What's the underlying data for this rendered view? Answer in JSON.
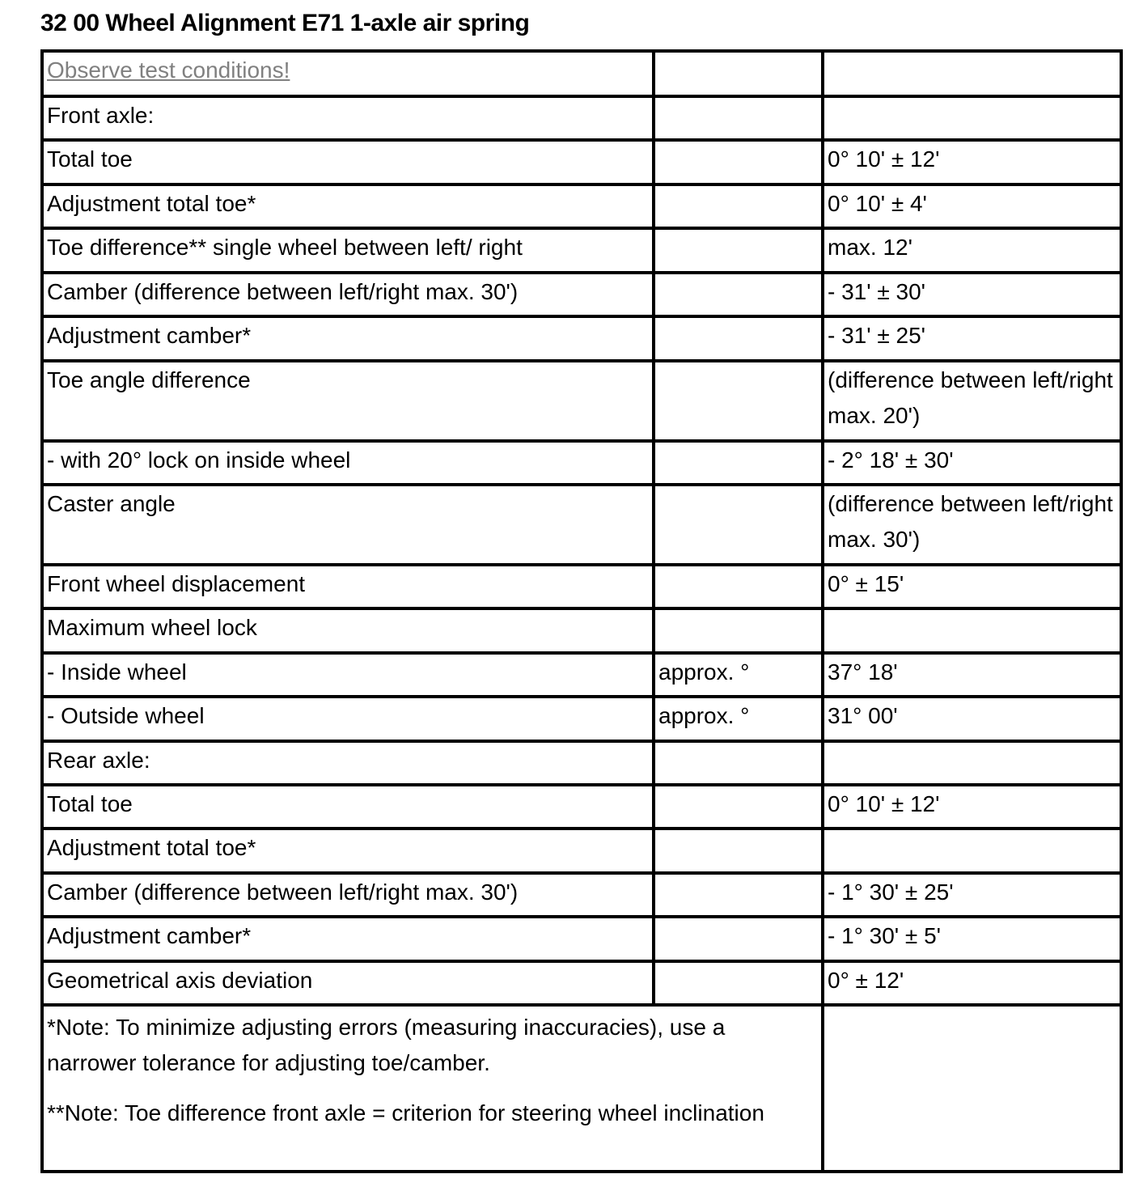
{
  "title": "32 00 Wheel Alignment E71 1-axle air spring",
  "link_text": "Observe test conditions!",
  "link_color": "#808080",
  "rows": [
    {
      "label": "Front axle:",
      "unit": "",
      "value": ""
    },
    {
      "label": "Total toe",
      "unit": "",
      "value": "0° 10' ± 12'"
    },
    {
      "label": "Adjustment total toe*",
      "unit": "",
      "value": "0° 10' ± 4'"
    },
    {
      "label": "Toe difference** single wheel between left/ right",
      "unit": "",
      "value": "max. 12'"
    },
    {
      "label": "Camber (difference between left/right max. 30')",
      "unit": "",
      "value": "- 31' ± 30'"
    },
    {
      "label": "Adjustment camber*",
      "unit": "",
      "value": "- 31' ± 25'"
    },
    {
      "label": "Toe angle difference",
      "unit": "",
      "value": "(difference between left/right max. 20')"
    },
    {
      "label": "- with 20° lock on inside wheel",
      "unit": "",
      "value": "- 2° 18' ± 30'"
    },
    {
      "label": "Caster angle",
      "unit": "",
      "value": "(difference between left/right max. 30')"
    },
    {
      "label": "Front wheel displacement",
      "unit": "",
      "value": "0° ± 15'"
    },
    {
      "label": "Maximum wheel lock",
      "unit": "",
      "value": ""
    },
    {
      "label": "- Inside wheel",
      "unit": "approx. °",
      "value": "37° 18'"
    },
    {
      "label": "- Outside wheel",
      "unit": "approx. °",
      "value": "31° 00'"
    },
    {
      "label": "Rear axle:",
      "unit": "",
      "value": ""
    },
    {
      "label": "Total toe",
      "unit": "",
      "value": "0° 10' ± 12'"
    },
    {
      "label": "Adjustment total toe*",
      "unit": "",
      "value": ""
    },
    {
      "label": "Camber (difference between left/right max. 30')",
      "unit": "",
      "value": "- 1° 30' ± 25'"
    },
    {
      "label": "Adjustment camber*",
      "unit": "",
      "value": "- 1° 30' ± 5'"
    },
    {
      "label": "Geometrical axis deviation",
      "unit": "",
      "value": "0° ± 12'"
    }
  ],
  "notes": [
    "*Note: To minimize adjusting errors (measuring inaccuracies), use a narrower tolerance for adjusting toe/camber.",
    "**Note: Toe difference front axle = criterion for steering wheel inclination"
  ]
}
